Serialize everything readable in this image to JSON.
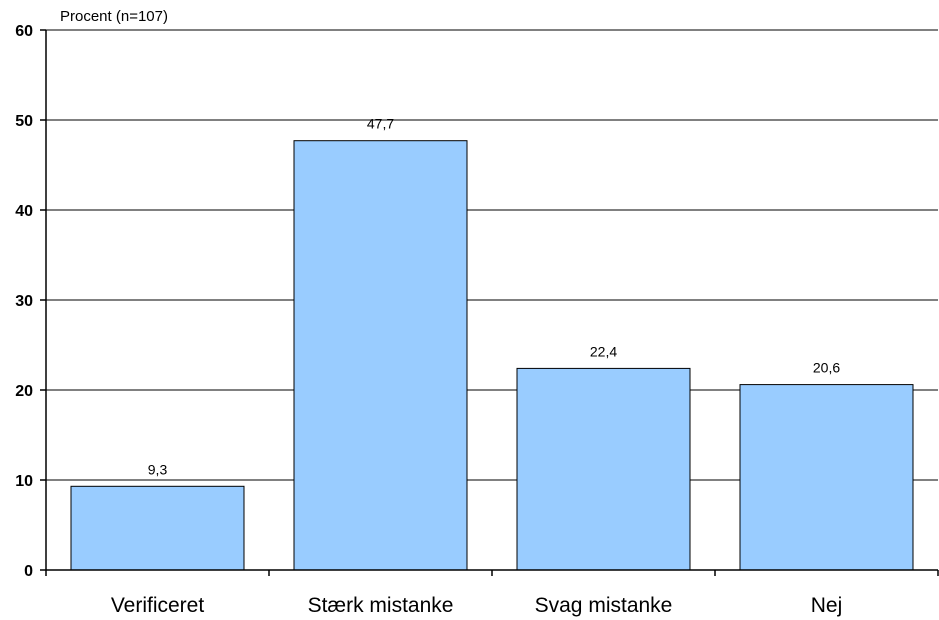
{
  "chart_data": {
    "type": "bar",
    "ylabel": "Procent (n=107)",
    "xlabel": "",
    "categories": [
      "Verificeret",
      "Stærk mistanke",
      "Svag mistanke",
      "Nej"
    ],
    "values": [
      9.3,
      47.7,
      22.4,
      20.6
    ],
    "value_labels": [
      "9,3",
      "47,7",
      "22,4",
      "20,6"
    ],
    "ylim": [
      0,
      60
    ],
    "yticks": [
      0,
      10,
      20,
      30,
      40,
      50,
      60
    ],
    "grid": true,
    "legend": "none",
    "colors": {
      "bar": "#99CCFF",
      "bar_stroke": "#000000",
      "grid": "#000000"
    }
  }
}
